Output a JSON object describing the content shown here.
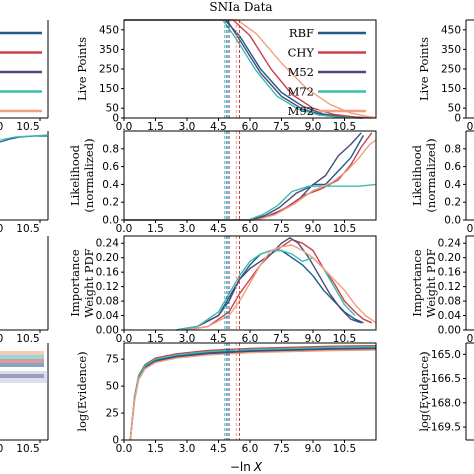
{
  "figure": {
    "title": "SNIa Data",
    "xlabel_prefix": "−ln",
    "xlabel_var": "X"
  },
  "colors": {
    "RBF": "#1f5a8a",
    "CHY": "#c8424a",
    "M52": "#4a4a78",
    "M72": "#3bbdb0",
    "M92": "#f0a080"
  },
  "chart_data": [
    {
      "id": "live_points",
      "type": "line",
      "ylabel_lines": [
        "Live Points"
      ],
      "xlim": [
        0,
        12
      ],
      "ylim": [
        0,
        500
      ],
      "xticks": [
        "0.0",
        "1.5",
        "3.0",
        "4.5",
        "6.0",
        "7.5",
        "9.0",
        "10.5"
      ],
      "yticks": [
        "0",
        "50",
        "150",
        "250",
        "350",
        "450"
      ],
      "legend": {
        "placement": "top-right",
        "entries": [
          "RBF",
          "CHY",
          "M52",
          "M72",
          "M92"
        ]
      },
      "series": [
        {
          "name": "RBF",
          "x": [
            0,
            4.8,
            5.5,
            6.5,
            7.5,
            8.5,
            9.5,
            10.5,
            11.4
          ],
          "y": [
            500,
            500,
            420,
            250,
            130,
            60,
            20,
            5,
            0
          ]
        },
        {
          "name": "CHY",
          "x": [
            0,
            5.2,
            6.0,
            7.0,
            8.0,
            9.0,
            10.0,
            11.0,
            11.8
          ],
          "y": [
            500,
            500,
            420,
            250,
            120,
            50,
            18,
            5,
            0
          ]
        },
        {
          "name": "M52",
          "x": [
            0,
            4.9,
            5.5,
            6.5,
            7.5,
            8.5,
            9.5,
            10.4,
            11.3
          ],
          "y": [
            500,
            500,
            400,
            230,
            110,
            45,
            15,
            4,
            0
          ]
        },
        {
          "name": "M72",
          "x": [
            0,
            4.7,
            5.3,
            6.3,
            7.3,
            8.3,
            9.3,
            10.2,
            11.1
          ],
          "y": [
            500,
            500,
            410,
            240,
            110,
            45,
            15,
            4,
            0
          ]
        },
        {
          "name": "M92",
          "x": [
            0,
            5.4,
            6.3,
            7.5,
            8.7,
            9.8,
            10.8,
            11.6,
            12.0
          ],
          "y": [
            500,
            500,
            430,
            280,
            150,
            70,
            25,
            8,
            2
          ]
        }
      ],
      "vlines": [
        {
          "series": "RBF",
          "x": 4.9
        },
        {
          "series": "CHY",
          "x": 5.5
        },
        {
          "series": "M52",
          "x": 5.0
        },
        {
          "series": "M72",
          "x": 4.8
        },
        {
          "series": "M92",
          "x": 5.35
        }
      ]
    },
    {
      "id": "likelihood",
      "type": "line",
      "ylabel_lines": [
        "Likelihood",
        "(normalized)"
      ],
      "xlim": [
        0,
        12
      ],
      "ylim": [
        0,
        1.0
      ],
      "xticks": [
        "0.0",
        "1.5",
        "3.0",
        "4.5",
        "6.0",
        "7.5",
        "9.0",
        "10.5"
      ],
      "yticks": [
        "0.0",
        "0.2",
        "0.4",
        "0.6",
        "0.8"
      ],
      "series": [
        {
          "name": "RBF",
          "x": [
            0,
            6.0,
            6.8,
            7.6,
            8.4,
            9.0,
            9.6,
            10.2,
            10.8,
            11.4
          ],
          "y": [
            0,
            0,
            0.04,
            0.12,
            0.25,
            0.4,
            0.4,
            0.55,
            0.7,
            0.95
          ]
        },
        {
          "name": "CHY",
          "x": [
            0,
            6.2,
            7.0,
            7.8,
            8.6,
            9.4,
            10.2,
            10.8,
            11.3,
            11.8
          ],
          "y": [
            0,
            0,
            0.05,
            0.15,
            0.28,
            0.35,
            0.45,
            0.62,
            0.82,
            0.98
          ]
        },
        {
          "name": "M52",
          "x": [
            0,
            6.0,
            6.7,
            7.4,
            8.2,
            8.9,
            9.6,
            10.2,
            10.8,
            11.3
          ],
          "y": [
            0,
            0,
            0.05,
            0.14,
            0.3,
            0.38,
            0.5,
            0.72,
            0.85,
            0.98
          ]
        },
        {
          "name": "M72",
          "x": [
            0,
            5.9,
            6.6,
            7.3,
            8.0,
            8.8,
            9.6,
            10.4,
            11.2,
            12.0
          ],
          "y": [
            0,
            0,
            0.06,
            0.16,
            0.32,
            0.38,
            0.38,
            0.38,
            0.38,
            0.4
          ]
        },
        {
          "name": "M92",
          "x": [
            0,
            6.3,
            7.2,
            8.1,
            9.0,
            9.9,
            10.6,
            11.2,
            11.7,
            12.0
          ],
          "y": [
            0,
            0,
            0.06,
            0.18,
            0.33,
            0.42,
            0.55,
            0.7,
            0.85,
            0.9
          ]
        }
      ],
      "vlines": [
        {
          "series": "RBF",
          "x": 4.9
        },
        {
          "series": "CHY",
          "x": 5.5
        },
        {
          "series": "M52",
          "x": 5.0
        },
        {
          "series": "M72",
          "x": 4.8
        },
        {
          "series": "M92",
          "x": 5.35
        }
      ]
    },
    {
      "id": "importance_weight",
      "type": "line",
      "ylabel_lines": [
        "Importance",
        "Weight PDF"
      ],
      "xlim": [
        0,
        12
      ],
      "ylim": [
        0,
        0.26
      ],
      "xticks": [
        "0.0",
        "1.5",
        "3.0",
        "4.5",
        "6.0",
        "7.5",
        "9.0",
        "10.5"
      ],
      "yticks": [
        "0.00",
        "0.04",
        "0.08",
        "0.12",
        "0.16",
        "0.20",
        "0.24"
      ],
      "series": [
        {
          "name": "RBF",
          "x": [
            2.5,
            3.5,
            4.5,
            5.0,
            5.5,
            6.0,
            6.5,
            7.0,
            7.5,
            8.0,
            8.5,
            9.0,
            9.5,
            10.0,
            10.5,
            11.0,
            11.4
          ],
          "y": [
            0,
            0.01,
            0.04,
            0.08,
            0.14,
            0.18,
            0.21,
            0.22,
            0.22,
            0.2,
            0.18,
            0.15,
            0.11,
            0.08,
            0.05,
            0.03,
            0.02
          ]
        },
        {
          "name": "CHY",
          "x": [
            3.0,
            4.0,
            5.0,
            5.5,
            6.0,
            6.5,
            7.0,
            7.5,
            8.0,
            8.5,
            9.0,
            9.5,
            10.0,
            10.5,
            11.0,
            11.4,
            11.8
          ],
          "y": [
            0,
            0.01,
            0.05,
            0.1,
            0.14,
            0.18,
            0.21,
            0.23,
            0.25,
            0.24,
            0.22,
            0.17,
            0.13,
            0.08,
            0.05,
            0.03,
            0.02
          ]
        },
        {
          "name": "M52",
          "x": [
            2.5,
            3.5,
            4.5,
            5.0,
            5.5,
            6.0,
            6.5,
            7.0,
            7.5,
            7.9,
            8.3,
            8.8,
            9.3,
            9.8,
            10.3,
            10.8,
            11.3
          ],
          "y": [
            0,
            0.01,
            0.04,
            0.09,
            0.14,
            0.17,
            0.19,
            0.21,
            0.24,
            0.255,
            0.24,
            0.2,
            0.15,
            0.1,
            0.06,
            0.03,
            0.02
          ]
        },
        {
          "name": "M72",
          "x": [
            2.5,
            3.5,
            4.5,
            5.0,
            5.5,
            6.0,
            6.5,
            7.0,
            7.5,
            8.0,
            8.5,
            9.0,
            9.5,
            10.0,
            10.5,
            11.0
          ],
          "y": [
            0,
            0.01,
            0.05,
            0.1,
            0.15,
            0.19,
            0.21,
            0.22,
            0.22,
            0.21,
            0.19,
            0.2,
            0.17,
            0.12,
            0.07,
            0.04
          ]
        },
        {
          "name": "M92",
          "x": [
            3.0,
            4.0,
            5.0,
            5.5,
            6.0,
            6.5,
            7.0,
            7.5,
            8.0,
            8.5,
            9.0,
            9.5,
            10.0,
            10.5,
            11.0,
            11.5,
            12.0
          ],
          "y": [
            0,
            0.01,
            0.04,
            0.08,
            0.13,
            0.18,
            0.22,
            0.23,
            0.235,
            0.22,
            0.2,
            0.17,
            0.14,
            0.11,
            0.07,
            0.04,
            0.02
          ]
        }
      ],
      "vlines": [
        {
          "series": "RBF",
          "x": 4.9
        },
        {
          "series": "CHY",
          "x": 5.5
        },
        {
          "series": "M52",
          "x": 5.0
        },
        {
          "series": "M72",
          "x": 4.8
        },
        {
          "series": "M92",
          "x": 5.35
        }
      ]
    },
    {
      "id": "log_evidence",
      "type": "line",
      "ylabel_lines": [
        "log(Evidence)"
      ],
      "xlim": [
        0,
        12
      ],
      "ylim": [
        0,
        90
      ],
      "xticks": [
        "0.0",
        "1.5",
        "3.0",
        "4.5",
        "6.0",
        "7.5",
        "9.0",
        "10.5"
      ],
      "yticks": [
        "0",
        "25",
        "50",
        "75"
      ],
      "series": [
        {
          "name": "RBF",
          "x": [
            0.3,
            0.5,
            0.7,
            1.0,
            1.5,
            2.5,
            4.0,
            6.0,
            8.0,
            10.0,
            12.0
          ],
          "y": [
            0,
            38,
            58,
            68,
            74,
            78,
            81,
            83,
            84,
            85,
            85.5
          ]
        },
        {
          "name": "CHY",
          "x": [
            0.3,
            0.5,
            0.7,
            1.0,
            1.5,
            2.5,
            4.0,
            6.0,
            8.0,
            10.0,
            12.0
          ],
          "y": [
            0,
            40,
            60,
            70,
            76,
            80,
            83,
            85,
            86,
            87,
            87.5
          ]
        },
        {
          "name": "M52",
          "x": [
            0.3,
            0.5,
            0.7,
            1.0,
            1.5,
            2.5,
            4.0,
            6.0,
            8.0,
            10.0,
            12.0
          ],
          "y": [
            0,
            37,
            57,
            67,
            73,
            77,
            80,
            82,
            83,
            84,
            84.5
          ]
        },
        {
          "name": "M72",
          "x": [
            0.3,
            0.5,
            0.7,
            1.0,
            1.5,
            2.5,
            4.0,
            6.0,
            8.0,
            10.0,
            12.0
          ],
          "y": [
            0,
            39,
            59,
            69,
            75,
            79,
            82,
            84,
            85,
            86,
            86.5
          ]
        },
        {
          "name": "M92",
          "x": [
            0.3,
            0.5,
            0.7,
            1.0,
            1.5,
            2.5,
            4.0,
            6.0,
            8.0,
            10.0,
            12.0
          ],
          "y": [
            0,
            36,
            56,
            66,
            72,
            76,
            79,
            81,
            82,
            83,
            83.5
          ]
        }
      ],
      "vlines": [
        {
          "series": "RBF",
          "x": 4.9
        },
        {
          "series": "CHY",
          "x": 5.5
        },
        {
          "series": "M52",
          "x": 5.0
        },
        {
          "series": "M72",
          "x": 4.8
        },
        {
          "series": "M92",
          "x": 5.35
        }
      ]
    }
  ],
  "left_fragments": {
    "xtick_left": "0",
    "xtick_right": "10.5"
  },
  "right_fragments": {
    "xtick_left": "0",
    "live_points_ylabel": "Live Points",
    "live_points_yticks": [
      "450",
      "350",
      "250",
      "150",
      "50",
      "0"
    ],
    "likelihood_ylabel_lines": [
      "Likelihood",
      "(normalized)"
    ],
    "likelihood_yticks": [
      "0.8",
      "0.6",
      "0.4",
      "0.2",
      "0.0"
    ],
    "importance_ylabel_lines": [
      "Importance",
      "Weight PDF"
    ],
    "importance_yticks": [
      "0.24",
      "0.20",
      "0.16",
      "0.12",
      "0.08",
      "0.04",
      "0.00"
    ],
    "evidence_ylabel": "log(Evidence)",
    "evidence_yticks": [
      "-165.0",
      "-166.5",
      "-168.0",
      "-169.5"
    ]
  }
}
